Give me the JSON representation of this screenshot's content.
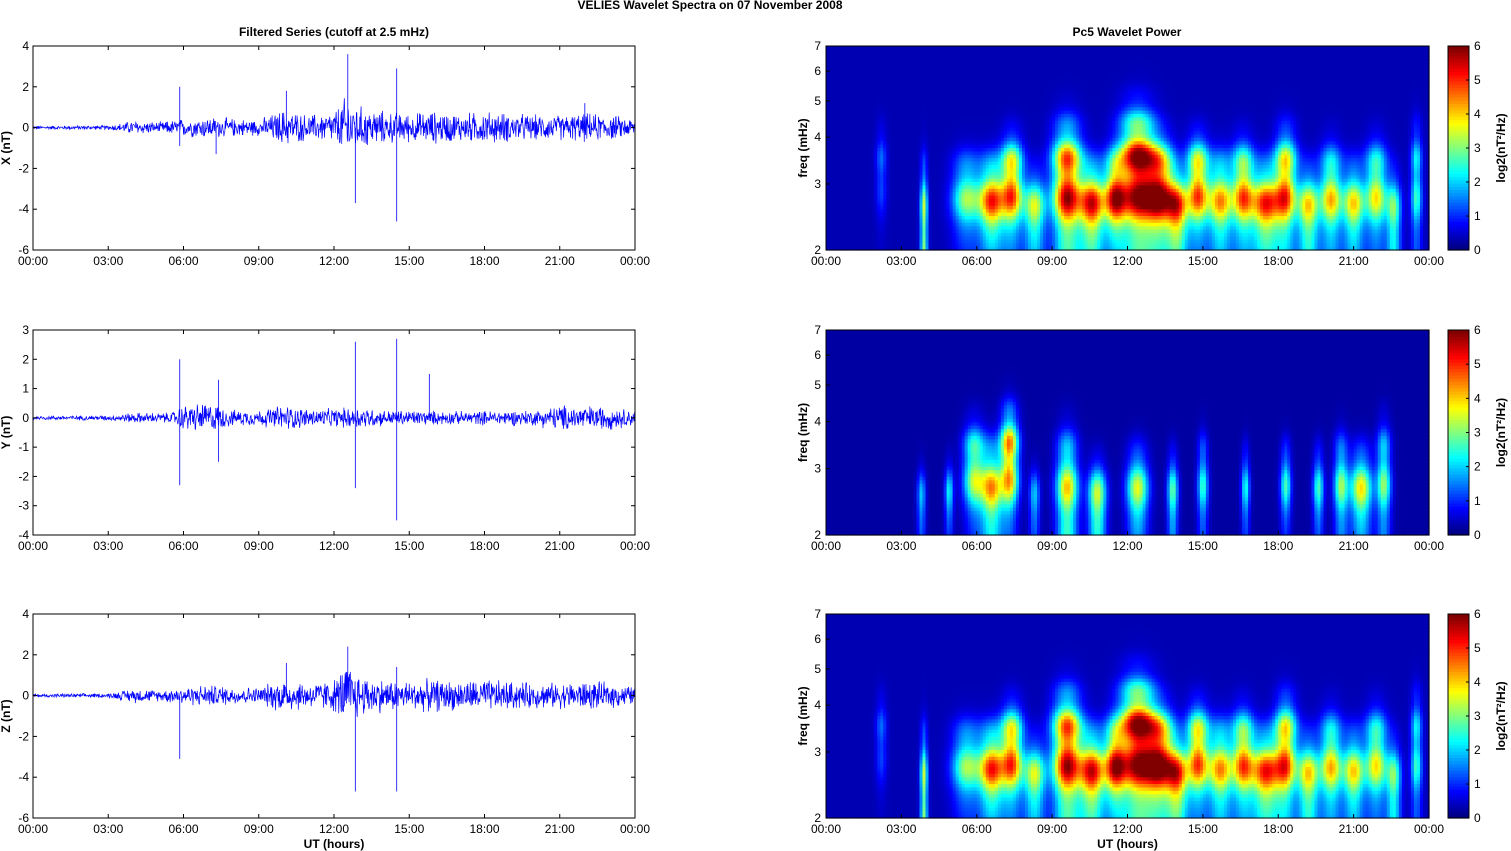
{
  "figure_title": "VELIES Wavelet Spectra on 07 November  2008",
  "left_title": "Filtered Series (cutoff at 2.5 mHz)",
  "right_title": "Pc5 Wavelet Power",
  "x_label": "UT (hours)",
  "x_ticks": [
    "00:00",
    "03:00",
    "06:00",
    "09:00",
    "12:00",
    "15:00",
    "18:00",
    "21:00",
    "00:00"
  ],
  "freq_label": "freq (mHz)",
  "freq_ticks": [
    "2",
    "3",
    "4",
    "5",
    "6",
    "7"
  ],
  "colorbar_label": "log2(nT²/Hz)",
  "colorbar_ticks": [
    "0",
    "1",
    "2",
    "3",
    "4",
    "5",
    "6"
  ],
  "colors": {
    "trace": "#0000ff"
  },
  "chart_data": [
    {
      "type": "line",
      "panel": "X",
      "ylabel": "X (nT)",
      "xlim": [
        0,
        24
      ],
      "ylim": [
        -6,
        4
      ],
      "yticks": [
        "4",
        "2",
        "0",
        "-2",
        "-4",
        "-6"
      ],
      "envelope": [
        [
          0,
          0.1
        ],
        [
          3,
          0.12
        ],
        [
          4,
          0.4
        ],
        [
          5,
          0.3
        ],
        [
          6,
          0.5
        ],
        [
          7,
          0.6
        ],
        [
          8,
          0.5
        ],
        [
          9,
          0.45
        ],
        [
          10,
          1.0
        ],
        [
          11,
          0.7
        ],
        [
          12,
          0.9
        ],
        [
          12.5,
          1.8
        ],
        [
          13,
          1.2
        ],
        [
          14,
          0.9
        ],
        [
          15,
          0.8
        ],
        [
          16,
          0.9
        ],
        [
          17,
          0.8
        ],
        [
          18,
          0.9
        ],
        [
          19,
          0.8
        ],
        [
          20,
          0.7
        ],
        [
          21,
          0.7
        ],
        [
          22,
          0.8
        ],
        [
          23,
          0.7
        ],
        [
          24,
          0.5
        ]
      ],
      "spikes": [
        [
          5.85,
          2.0
        ],
        [
          5.85,
          -0.9
        ],
        [
          7.3,
          -1.3
        ],
        [
          10.1,
          1.8
        ],
        [
          12.55,
          3.6
        ],
        [
          12.85,
          -3.7
        ],
        [
          14.5,
          2.9
        ],
        [
          14.5,
          -4.6
        ],
        [
          22.0,
          1.2
        ]
      ]
    },
    {
      "type": "line",
      "panel": "Y",
      "ylabel": "Y (nT)",
      "xlim": [
        0,
        24
      ],
      "ylim": [
        -4,
        3
      ],
      "yticks": [
        "3",
        "2",
        "1",
        "0",
        "-1",
        "-2",
        "-3",
        "-4"
      ],
      "envelope": [
        [
          0,
          0.08
        ],
        [
          3,
          0.1
        ],
        [
          4,
          0.2
        ],
        [
          5.5,
          0.2
        ],
        [
          6,
          0.5
        ],
        [
          7,
          0.6
        ],
        [
          8,
          0.3
        ],
        [
          9,
          0.3
        ],
        [
          10,
          0.5
        ],
        [
          11,
          0.35
        ],
        [
          12,
          0.35
        ],
        [
          13,
          0.45
        ],
        [
          14,
          0.3
        ],
        [
          15,
          0.3
        ],
        [
          17,
          0.25
        ],
        [
          19,
          0.3
        ],
        [
          20,
          0.3
        ],
        [
          21,
          0.5
        ],
        [
          23,
          0.45
        ],
        [
          24,
          0.3
        ]
      ],
      "spikes": [
        [
          5.85,
          2.0
        ],
        [
          5.85,
          -2.3
        ],
        [
          7.4,
          1.3
        ],
        [
          7.4,
          -1.5
        ],
        [
          12.85,
          2.6
        ],
        [
          12.85,
          -2.4
        ],
        [
          14.5,
          2.7
        ],
        [
          14.5,
          -3.5
        ],
        [
          15.8,
          1.5
        ]
      ]
    },
    {
      "type": "line",
      "panel": "Z",
      "ylabel": "Z (nT)",
      "xlim": [
        0,
        24
      ],
      "ylim": [
        -6,
        4
      ],
      "yticks": [
        "4",
        "2",
        "0",
        "-2",
        "-4",
        "-6"
      ],
      "envelope": [
        [
          0,
          0.1
        ],
        [
          3,
          0.12
        ],
        [
          4,
          0.4
        ],
        [
          5,
          0.3
        ],
        [
          6,
          0.5
        ],
        [
          7,
          0.6
        ],
        [
          8,
          0.5
        ],
        [
          9,
          0.45
        ],
        [
          10,
          1.0
        ],
        [
          11,
          0.7
        ],
        [
          12,
          0.9
        ],
        [
          12.5,
          1.8
        ],
        [
          13,
          1.2
        ],
        [
          14,
          0.9
        ],
        [
          15,
          0.8
        ],
        [
          16,
          0.9
        ],
        [
          17,
          0.8
        ],
        [
          18,
          0.9
        ],
        [
          19,
          0.8
        ],
        [
          20,
          0.7
        ],
        [
          21,
          0.7
        ],
        [
          22,
          0.8
        ],
        [
          23,
          0.7
        ],
        [
          24,
          0.5
        ]
      ],
      "spikes": [
        [
          5.85,
          -3.1
        ],
        [
          10.1,
          1.6
        ],
        [
          12.55,
          2.4
        ],
        [
          12.85,
          -4.7
        ],
        [
          14.5,
          1.4
        ],
        [
          14.5,
          -4.7
        ]
      ]
    },
    {
      "type": "heatmap",
      "panel": "X",
      "xlim": [
        0,
        24
      ],
      "ylim_mhz": [
        2,
        7
      ],
      "y_scale": "log",
      "clim": [
        0,
        6
      ],
      "colormap": "jet",
      "background_level": 0.3,
      "bursts": [
        [
          2.2,
          3.3,
          0.15,
          0.6,
          1.2
        ],
        [
          3.9,
          2.3,
          0.1,
          0.7,
          3.5
        ],
        [
          5.6,
          2.8,
          0.4,
          0.5,
          3.0
        ],
        [
          6.6,
          2.7,
          0.35,
          0.5,
          4.8
        ],
        [
          7.4,
          3.0,
          0.3,
          0.6,
          5.0
        ],
        [
          8.3,
          2.5,
          0.3,
          0.45,
          3.5
        ],
        [
          9.6,
          3.0,
          0.4,
          0.8,
          6.0
        ],
        [
          10.6,
          2.6,
          0.35,
          0.5,
          5.2
        ],
        [
          11.5,
          2.8,
          0.3,
          0.5,
          4.8
        ],
        [
          12.4,
          3.2,
          0.5,
          0.9,
          6.5
        ],
        [
          13.3,
          2.9,
          0.4,
          0.6,
          5.5
        ],
        [
          14.0,
          2.5,
          0.3,
          0.45,
          4.5
        ],
        [
          14.8,
          3.0,
          0.3,
          0.6,
          5.0
        ],
        [
          15.7,
          2.7,
          0.35,
          0.55,
          4.2
        ],
        [
          16.6,
          2.9,
          0.3,
          0.6,
          4.5
        ],
        [
          17.5,
          2.6,
          0.4,
          0.5,
          5.0
        ],
        [
          18.3,
          3.0,
          0.3,
          0.7,
          4.8
        ],
        [
          19.2,
          2.5,
          0.3,
          0.5,
          4.0
        ],
        [
          20.1,
          2.8,
          0.3,
          0.6,
          4.0
        ],
        [
          21.0,
          2.6,
          0.3,
          0.5,
          3.8
        ],
        [
          21.9,
          2.9,
          0.3,
          0.6,
          3.8
        ],
        [
          22.6,
          2.4,
          0.2,
          0.5,
          3.0
        ],
        [
          23.5,
          3.0,
          0.15,
          0.8,
          2.5
        ]
      ]
    },
    {
      "type": "heatmap",
      "panel": "Y",
      "xlim": [
        0,
        24
      ],
      "ylim_mhz": [
        2,
        7
      ],
      "y_scale": "log",
      "clim": [
        0,
        6
      ],
      "colormap": "jet",
      "background_level": 0.2,
      "bursts": [
        [
          3.8,
          2.4,
          0.12,
          0.4,
          2.0
        ],
        [
          4.9,
          2.5,
          0.12,
          0.4,
          2.2
        ],
        [
          5.9,
          3.0,
          0.3,
          0.6,
          3.5
        ],
        [
          6.6,
          2.6,
          0.3,
          0.55,
          4.2
        ],
        [
          7.3,
          3.2,
          0.25,
          0.7,
          5.0
        ],
        [
          8.3,
          2.4,
          0.15,
          0.4,
          2.0
        ],
        [
          9.6,
          2.6,
          0.3,
          0.7,
          4.0
        ],
        [
          10.8,
          2.4,
          0.25,
          0.45,
          3.8
        ],
        [
          12.4,
          2.6,
          0.3,
          0.5,
          3.5
        ],
        [
          13.8,
          2.5,
          0.15,
          0.5,
          2.8
        ],
        [
          15.0,
          2.7,
          0.15,
          0.6,
          2.4
        ],
        [
          16.7,
          2.6,
          0.12,
          0.5,
          2.2
        ],
        [
          18.3,
          2.7,
          0.15,
          0.5,
          2.5
        ],
        [
          19.6,
          2.6,
          0.15,
          0.5,
          2.5
        ],
        [
          20.5,
          2.7,
          0.2,
          0.6,
          3.0
        ],
        [
          21.3,
          2.6,
          0.3,
          0.5,
          3.8
        ],
        [
          22.2,
          2.8,
          0.2,
          0.7,
          3.0
        ]
      ]
    },
    {
      "type": "heatmap",
      "panel": "Z",
      "xlim": [
        0,
        24
      ],
      "ylim_mhz": [
        2,
        7
      ],
      "y_scale": "log",
      "clim": [
        0,
        6
      ],
      "colormap": "jet",
      "background_level": 0.3,
      "bursts": [
        [
          2.2,
          3.3,
          0.15,
          0.6,
          1.2
        ],
        [
          3.9,
          2.3,
          0.1,
          0.7,
          3.5
        ],
        [
          5.6,
          2.8,
          0.4,
          0.5,
          3.0
        ],
        [
          6.6,
          2.7,
          0.35,
          0.5,
          4.8
        ],
        [
          7.4,
          3.0,
          0.3,
          0.6,
          5.0
        ],
        [
          8.3,
          2.5,
          0.3,
          0.45,
          3.5
        ],
        [
          9.6,
          3.0,
          0.4,
          0.8,
          6.0
        ],
        [
          10.6,
          2.6,
          0.35,
          0.5,
          5.2
        ],
        [
          11.5,
          2.8,
          0.3,
          0.5,
          4.8
        ],
        [
          12.4,
          3.2,
          0.5,
          0.9,
          6.5
        ],
        [
          13.3,
          2.9,
          0.4,
          0.6,
          5.5
        ],
        [
          14.0,
          2.5,
          0.3,
          0.45,
          4.5
        ],
        [
          14.8,
          3.0,
          0.3,
          0.6,
          5.0
        ],
        [
          15.7,
          2.7,
          0.35,
          0.55,
          4.2
        ],
        [
          16.6,
          2.9,
          0.3,
          0.6,
          4.5
        ],
        [
          17.5,
          2.6,
          0.4,
          0.5,
          5.0
        ],
        [
          18.3,
          3.0,
          0.3,
          0.7,
          4.8
        ],
        [
          19.2,
          2.5,
          0.3,
          0.5,
          4.0
        ],
        [
          20.1,
          2.8,
          0.3,
          0.6,
          4.0
        ],
        [
          21.0,
          2.6,
          0.3,
          0.5,
          3.8
        ],
        [
          21.9,
          2.9,
          0.3,
          0.6,
          3.8
        ],
        [
          22.6,
          2.4,
          0.2,
          0.5,
          3.0
        ],
        [
          23.5,
          3.0,
          0.15,
          0.8,
          2.5
        ]
      ]
    }
  ]
}
